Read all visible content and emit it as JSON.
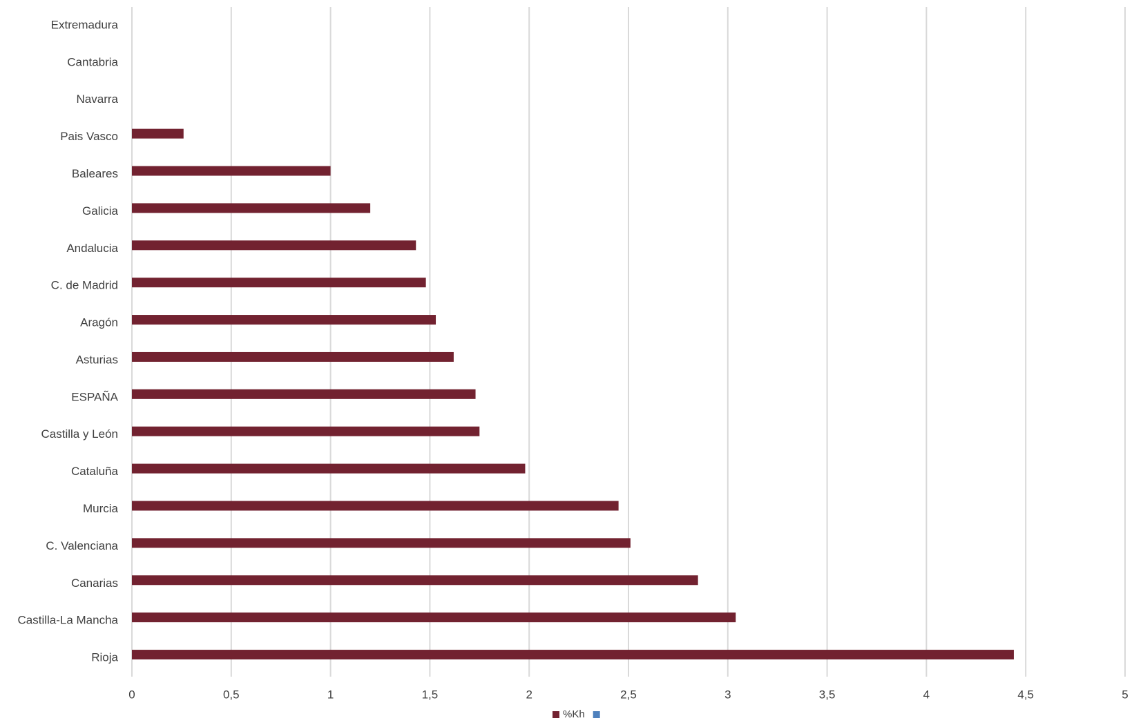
{
  "chart_data": {
    "type": "hbar",
    "categories": [
      "Extremadura",
      "Cantabria",
      "Navarra",
      "Pais Vasco",
      "Baleares",
      "Galicia",
      "Andalucia",
      "C. de Madrid",
      "Aragón",
      "Asturias",
      "ESPAÑA",
      "Castilla y León",
      "Cataluña",
      "Murcia",
      "C. Valenciana",
      "Canarias",
      "Castilla-La Mancha",
      "Rioja"
    ],
    "series": [
      {
        "name": "%Kh",
        "color": "#722230",
        "values": [
          0,
          0,
          0,
          0.26,
          1.0,
          1.2,
          1.43,
          1.48,
          1.53,
          1.62,
          1.73,
          1.75,
          1.98,
          2.45,
          2.51,
          2.85,
          3.04,
          4.44
        ]
      },
      {
        "color": "#4f81bd",
        "values": [
          null,
          null,
          null,
          null,
          null,
          null,
          null,
          null,
          null,
          null,
          null,
          null,
          null,
          null,
          null,
          null,
          null,
          null
        ]
      }
    ],
    "xlim": [
      0,
      5
    ],
    "xticks": [
      0,
      {
        "value": 0.5,
        "label": "0,5"
      },
      1,
      {
        "value": 1.5,
        "label": "1,5"
      },
      2,
      {
        "value": 2.5,
        "label": "2,5"
      },
      3,
      {
        "value": 3.5,
        "label": "3,5"
      },
      4,
      {
        "value": 4.5,
        "label": "4,5"
      },
      5
    ],
    "grid": true
  }
}
